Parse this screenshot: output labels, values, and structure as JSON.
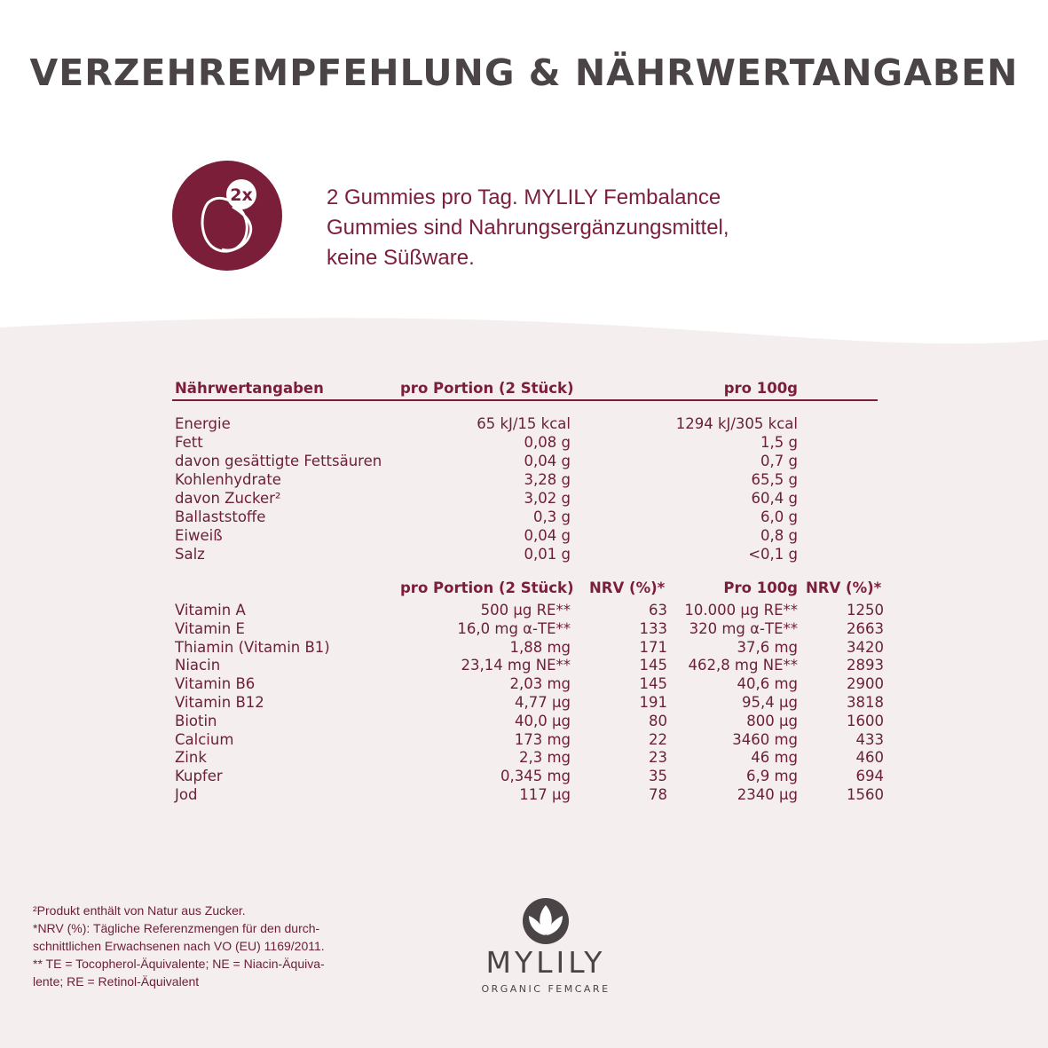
{
  "title": "VERZEHREMPFEHLUNG & NÄHRWERTANGABEN",
  "badge": {
    "label": "2x"
  },
  "intro": {
    "line1": "2 Gummies pro Tag. MYLILY Fembalance",
    "line2": "Gummies sind Nahrungsergänzungsmittel,",
    "line3": "keine Süßware."
  },
  "nutrition": {
    "header": {
      "name": "Nährwertangaben",
      "portion": "pro Portion (2 Stück)",
      "per100": "pro  100g"
    },
    "rows": [
      {
        "name": "Energie",
        "portion": "65 kJ/15 kcal",
        "per100": "1294 kJ/305 kcal"
      },
      {
        "name": "Fett",
        "portion": "0,08 g",
        "per100": "1,5 g"
      },
      {
        "name": "davon gesättigte Fettsäuren",
        "portion": "0,04 g",
        "per100": "0,7 g"
      },
      {
        "name": "Kohlenhydrate",
        "portion": "3,28 g",
        "per100": "65,5 g"
      },
      {
        "name": "davon Zucker²",
        "portion": "3,02 g",
        "per100": "60,4 g"
      },
      {
        "name": "Ballaststoffe",
        "portion": "0,3 g",
        "per100": "6,0 g"
      },
      {
        "name": "Eiweiß",
        "portion": "0,04 g",
        "per100": "0,8 g"
      },
      {
        "name": "Salz",
        "portion": "0,01 g",
        "per100": "<0,1 g"
      }
    ]
  },
  "vitamins": {
    "header": {
      "portion": "pro Portion (2 Stück)",
      "nrv1": "NRV (%)*",
      "per100": "Pro 100g",
      "nrv2": "NRV (%)*"
    },
    "rows": [
      {
        "name": "Vitamin A",
        "portion": "500 µg RE**",
        "nrv1": "63",
        "per100": "10.000 µg RE**",
        "nrv2": "1250"
      },
      {
        "name": "Vitamin E",
        "portion": "16,0 mg α-TE**",
        "nrv1": "133",
        "per100": "320 mg α-TE**",
        "nrv2": "2663"
      },
      {
        "name": "Thiamin (Vitamin B1)",
        "portion": "1,88 mg",
        "nrv1": "171",
        "per100": "37,6 mg",
        "nrv2": "3420"
      },
      {
        "name": "Niacin",
        "portion": "23,14 mg NE**",
        "nrv1": "145",
        "per100": "462,8 mg NE**",
        "nrv2": "2893"
      },
      {
        "name": "Vitamin B6",
        "portion": "2,03 mg",
        "nrv1": "145",
        "per100": "40,6 mg",
        "nrv2": "2900"
      },
      {
        "name": "Vitamin B12",
        "portion": "4,77 µg",
        "nrv1": "191",
        "per100": "95,4 µg",
        "nrv2": "3818"
      },
      {
        "name": "Biotin",
        "portion": "40,0 µg",
        "nrv1": "80",
        "per100": "800 µg",
        "nrv2": "1600"
      },
      {
        "name": "Calcium",
        "portion": "173 mg",
        "nrv1": "22",
        "per100": "3460 mg",
        "nrv2": "433"
      },
      {
        "name": "Zink",
        "portion": "2,3 mg",
        "nrv1": "23",
        "per100": "46 mg",
        "nrv2": "460"
      },
      {
        "name": "Kupfer",
        "portion": "0,345 mg",
        "nrv1": "35",
        "per100": "6,9 mg",
        "nrv2": "694"
      },
      {
        "name": "Jod",
        "portion": "117 µg",
        "nrv1": "78",
        "per100": "2340 µg",
        "nrv2": "1560"
      }
    ]
  },
  "footnotes": [
    "²Produkt enthält von Natur aus Zucker.",
    "*NRV (%): Tägliche Referenzmengen für den durch-",
    "schnittlichen Erwachsenen nach VO (EU) 1169/2011.",
    "** TE = Tocopherol-Äquivalente; NE = Niacin-Äquiva-",
    "lente; RE = Retinol-Äquivalent"
  ],
  "logo": {
    "word": "MYLILY",
    "sub": "ORGANIC FEMCARE"
  },
  "colors": {
    "accent": "#7b1e3a",
    "background_lower": "#f4eeee",
    "title": "#4a4446"
  }
}
